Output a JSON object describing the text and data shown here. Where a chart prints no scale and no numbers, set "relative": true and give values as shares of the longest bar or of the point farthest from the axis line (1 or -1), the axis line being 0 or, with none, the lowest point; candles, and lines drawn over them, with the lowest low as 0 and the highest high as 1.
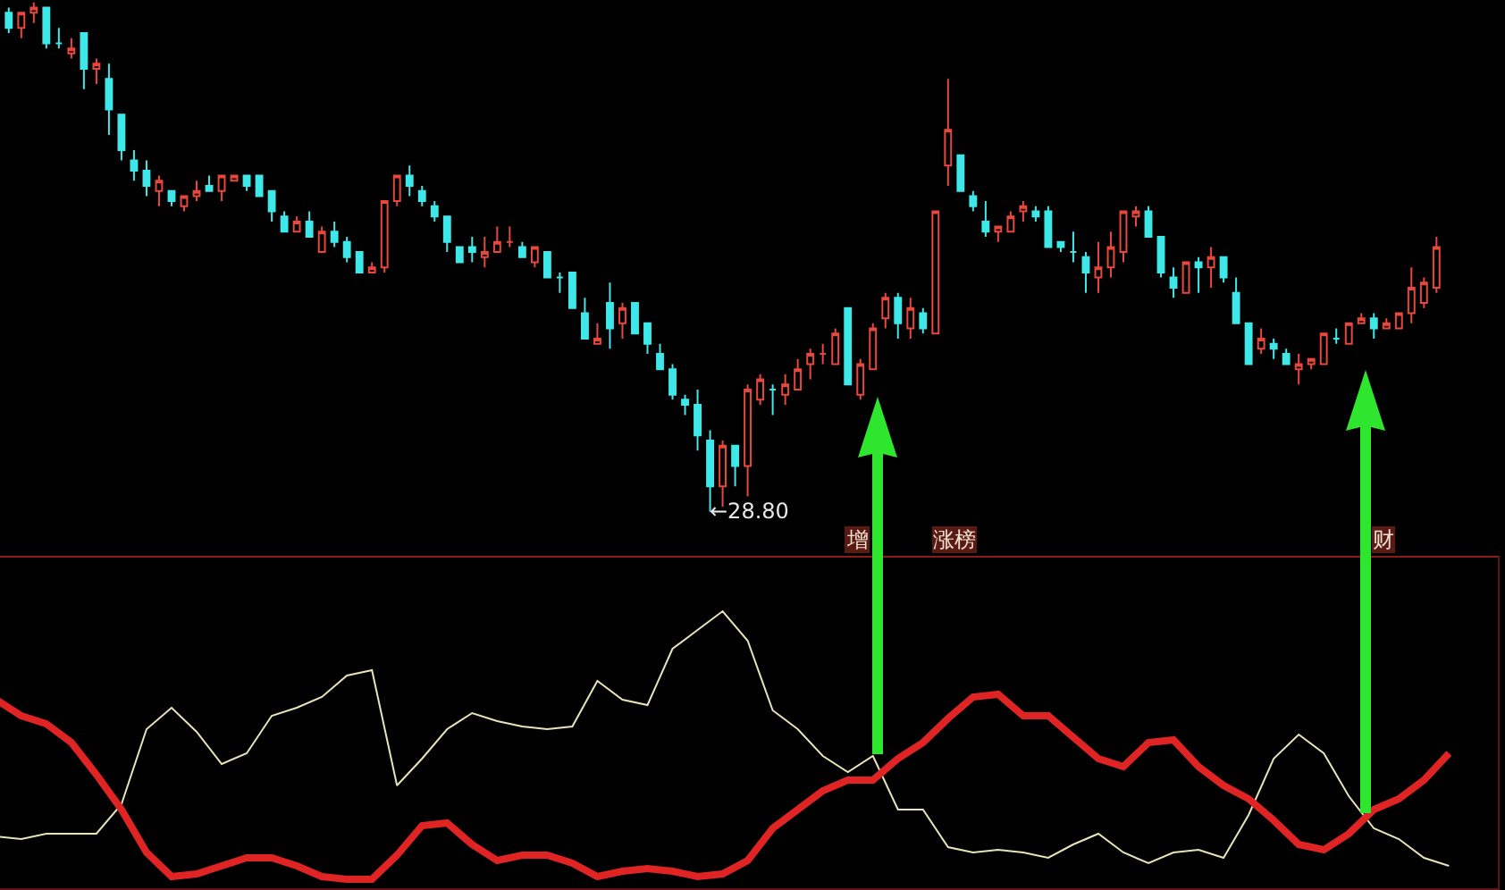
{
  "chart_data": [
    {
      "type": "candlestick",
      "relative": true,
      "categories": [
        null,
        null,
        null,
        null,
        null,
        null,
        null,
        null,
        null,
        null,
        null,
        null,
        null,
        null,
        null,
        null,
        null,
        null,
        null,
        null,
        null,
        null,
        null,
        null,
        null,
        null,
        null,
        null,
        null,
        null,
        null,
        null,
        null,
        null,
        null,
        null,
        null,
        null,
        null,
        null,
        null,
        null,
        null,
        null,
        null,
        null,
        null,
        null,
        null,
        null,
        null,
        null,
        null,
        null,
        null,
        null,
        null,
        null,
        null,
        null,
        null,
        null,
        null,
        null,
        null,
        null,
        null,
        null,
        null,
        null,
        null,
        null,
        null,
        null,
        null,
        null,
        null,
        null,
        null,
        null,
        null,
        null,
        null,
        null,
        null,
        null,
        null,
        null,
        null,
        null,
        null,
        null,
        null,
        null,
        null,
        null,
        null,
        null,
        null,
        null,
        null,
        null,
        null,
        null,
        null,
        null,
        null,
        null,
        null,
        null,
        null,
        null,
        null,
        null,
        null
      ],
      "ohlc": [
        [
          0.98,
          0.99,
          0.94,
          0.95
        ],
        [
          0.95,
          0.98,
          0.93,
          0.98
        ],
        [
          0.98,
          1.0,
          0.96,
          0.99
        ],
        [
          0.99,
          0.99,
          0.91,
          0.92
        ],
        [
          0.92,
          0.95,
          0.91,
          0.92
        ],
        [
          0.9,
          0.93,
          0.89,
          0.91
        ],
        [
          0.94,
          0.94,
          0.83,
          0.87
        ],
        [
          0.87,
          0.89,
          0.84,
          0.88
        ],
        [
          0.85,
          0.88,
          0.74,
          0.79
        ],
        [
          0.78,
          0.78,
          0.69,
          0.71
        ],
        [
          0.69,
          0.71,
          0.65,
          0.67
        ],
        [
          0.67,
          0.69,
          0.62,
          0.64
        ],
        [
          0.63,
          0.66,
          0.6,
          0.65
        ],
        [
          0.63,
          0.63,
          0.6,
          0.61
        ],
        [
          0.6,
          0.62,
          0.59,
          0.62
        ],
        [
          0.62,
          0.65,
          0.61,
          0.63
        ],
        [
          0.64,
          0.66,
          0.63,
          0.63
        ],
        [
          0.63,
          0.66,
          0.61,
          0.66
        ],
        [
          0.65,
          0.66,
          0.65,
          0.66
        ],
        [
          0.66,
          0.66,
          0.63,
          0.64
        ],
        [
          0.66,
          0.66,
          0.62,
          0.62
        ],
        [
          0.63,
          0.63,
          0.57,
          0.59
        ],
        [
          0.58,
          0.59,
          0.55,
          0.55
        ],
        [
          0.55,
          0.58,
          0.55,
          0.57
        ],
        [
          0.57,
          0.59,
          0.54,
          0.54
        ],
        [
          0.51,
          0.56,
          0.51,
          0.55
        ],
        [
          0.55,
          0.57,
          0.52,
          0.53
        ],
        [
          0.53,
          0.54,
          0.49,
          0.5
        ],
        [
          0.51,
          0.51,
          0.47,
          0.47
        ],
        [
          0.47,
          0.49,
          0.47,
          0.48
        ],
        [
          0.48,
          0.61,
          0.47,
          0.61
        ],
        [
          0.61,
          0.66,
          0.6,
          0.66
        ],
        [
          0.66,
          0.68,
          0.62,
          0.64
        ],
        [
          0.63,
          0.64,
          0.6,
          0.61
        ],
        [
          0.6,
          0.61,
          0.57,
          0.58
        ],
        [
          0.58,
          0.58,
          0.51,
          0.53
        ],
        [
          0.52,
          0.52,
          0.49,
          0.49
        ],
        [
          0.52,
          0.54,
          0.49,
          0.51
        ],
        [
          0.5,
          0.54,
          0.48,
          0.51
        ],
        [
          0.51,
          0.56,
          0.51,
          0.53
        ],
        [
          0.53,
          0.56,
          0.52,
          0.53
        ],
        [
          0.52,
          0.53,
          0.5,
          0.5
        ],
        [
          0.49,
          0.52,
          0.48,
          0.52
        ],
        [
          0.51,
          0.51,
          0.46,
          0.46
        ],
        [
          0.46,
          0.47,
          0.43,
          0.46
        ],
        [
          0.47,
          0.47,
          0.4,
          0.4
        ],
        [
          0.39,
          0.42,
          0.34,
          0.34
        ],
        [
          0.33,
          0.37,
          0.33,
          0.34
        ],
        [
          0.41,
          0.45,
          0.32,
          0.36
        ],
        [
          0.37,
          0.41,
          0.34,
          0.4
        ],
        [
          0.41,
          0.41,
          0.35,
          0.35
        ],
        [
          0.37,
          0.37,
          0.31,
          0.33
        ],
        [
          0.31,
          0.33,
          0.28,
          0.28
        ],
        [
          0.28,
          0.29,
          0.22,
          0.23
        ],
        [
          0.22,
          0.23,
          0.19,
          0.21
        ],
        [
          0.21,
          0.24,
          0.12,
          0.15
        ],
        [
          0.14,
          0.16,
          0.0,
          0.05
        ],
        [
          0.05,
          0.14,
          0.01,
          0.13
        ],
        [
          0.13,
          0.13,
          0.05,
          0.09
        ],
        [
          0.09,
          0.25,
          0.03,
          0.24
        ],
        [
          0.22,
          0.27,
          0.21,
          0.26
        ],
        [
          0.24,
          0.25,
          0.19,
          0.24
        ],
        [
          0.23,
          0.27,
          0.21,
          0.25
        ],
        [
          0.24,
          0.3,
          0.24,
          0.28
        ],
        [
          0.29,
          0.32,
          0.26,
          0.31
        ],
        [
          0.31,
          0.33,
          0.29,
          0.31
        ],
        [
          0.29,
          0.36,
          0.29,
          0.35
        ],
        [
          0.4,
          0.4,
          0.25,
          0.25
        ],
        [
          0.23,
          0.3,
          0.22,
          0.29
        ],
        [
          0.28,
          0.37,
          0.28,
          0.36
        ],
        [
          0.38,
          0.43,
          0.36,
          0.42
        ],
        [
          0.42,
          0.43,
          0.34,
          0.37
        ],
        [
          0.36,
          0.42,
          0.34,
          0.4
        ],
        [
          0.39,
          0.4,
          0.35,
          0.36
        ],
        [
          0.35,
          0.59,
          0.35,
          0.59
        ],
        [
          0.68,
          0.85,
          0.64,
          0.75
        ],
        [
          0.7,
          0.7,
          0.63,
          0.63
        ],
        [
          0.62,
          0.63,
          0.59,
          0.6
        ],
        [
          0.57,
          0.61,
          0.54,
          0.55
        ],
        [
          0.55,
          0.56,
          0.53,
          0.56
        ],
        [
          0.55,
          0.59,
          0.55,
          0.58
        ],
        [
          0.59,
          0.61,
          0.57,
          0.6
        ],
        [
          0.59,
          0.6,
          0.57,
          0.58
        ],
        [
          0.59,
          0.6,
          0.52,
          0.52
        ],
        [
          0.53,
          0.53,
          0.51,
          0.52
        ],
        [
          0.51,
          0.55,
          0.49,
          0.51
        ],
        [
          0.5,
          0.51,
          0.43,
          0.47
        ],
        [
          0.46,
          0.53,
          0.43,
          0.48
        ],
        [
          0.48,
          0.55,
          0.46,
          0.52
        ],
        [
          0.51,
          0.59,
          0.49,
          0.59
        ],
        [
          0.58,
          0.6,
          0.56,
          0.59
        ],
        [
          0.59,
          0.6,
          0.54,
          0.54
        ],
        [
          0.54,
          0.54,
          0.46,
          0.47
        ],
        [
          0.46,
          0.48,
          0.42,
          0.44
        ],
        [
          0.43,
          0.49,
          0.43,
          0.49
        ],
        [
          0.49,
          0.5,
          0.43,
          0.48
        ],
        [
          0.48,
          0.52,
          0.44,
          0.5
        ],
        [
          0.5,
          0.5,
          0.45,
          0.46
        ],
        [
          0.43,
          0.46,
          0.37,
          0.37
        ],
        [
          0.37,
          0.37,
          0.29,
          0.29
        ],
        [
          0.32,
          0.36,
          0.31,
          0.34
        ],
        [
          0.33,
          0.34,
          0.3,
          0.32
        ],
        [
          0.31,
          0.32,
          0.29,
          0.29
        ],
        [
          0.28,
          0.31,
          0.25,
          0.29
        ],
        [
          0.29,
          0.3,
          0.28,
          0.3
        ],
        [
          0.29,
          0.35,
          0.29,
          0.35
        ],
        [
          0.34,
          0.36,
          0.33,
          0.34
        ],
        [
          0.33,
          0.37,
          0.33,
          0.37
        ],
        [
          0.37,
          0.39,
          0.37,
          0.38
        ],
        [
          0.38,
          0.39,
          0.34,
          0.36
        ],
        [
          0.36,
          0.38,
          0.36,
          0.37
        ],
        [
          0.36,
          0.39,
          0.36,
          0.39
        ],
        [
          0.39,
          0.48,
          0.37,
          0.44
        ],
        [
          0.41,
          0.46,
          0.4,
          0.45
        ],
        [
          0.44,
          0.54,
          0.43,
          0.52
        ]
      ],
      "annotations": [
        "←28.80",
        "增",
        "涨榜",
        "财"
      ]
    },
    {
      "type": "line",
      "relative": true,
      "categories": [
        null,
        null,
        null,
        null,
        null,
        null,
        null,
        null,
        null,
        null,
        null,
        null,
        null,
        null,
        null,
        null,
        null,
        null,
        null,
        null,
        null,
        null,
        null,
        null,
        null,
        null,
        null,
        null,
        null,
        null,
        null,
        null,
        null,
        null,
        null,
        null,
        null,
        null,
        null,
        null,
        null,
        null,
        null,
        null,
        null,
        null,
        null,
        null,
        null,
        null,
        null,
        null,
        null,
        null,
        null,
        null,
        null,
        null,
        null
      ],
      "series": [
        {
          "color": "#e8e4b8",
          "values": [
            0.16,
            0.15,
            0.17,
            0.17,
            0.17,
            0.28,
            0.56,
            0.64,
            0.55,
            0.43,
            0.47,
            0.61,
            0.64,
            0.68,
            0.76,
            0.78,
            0.35,
            0.45,
            0.56,
            0.62,
            0.59,
            0.57,
            0.56,
            0.57,
            0.74,
            0.67,
            0.65,
            0.86,
            0.93,
            1.0,
            0.89,
            0.63,
            0.56,
            0.46,
            0.4,
            0.46,
            0.26,
            0.26,
            0.12,
            0.1,
            0.11,
            0.1,
            0.08,
            0.13,
            0.17,
            0.1,
            0.06,
            0.1,
            0.11,
            0.08,
            0.24,
            0.45,
            0.54,
            0.47,
            0.31,
            0.19,
            0.15,
            0.08,
            0.05
          ]
        },
        {
          "color": "#e02424",
          "values": [
            0.67,
            0.61,
            0.58,
            0.51,
            0.39,
            0.26,
            0.1,
            0.01,
            0.02,
            0.05,
            0.08,
            0.08,
            0.05,
            0.01,
            0.0,
            0.0,
            0.09,
            0.2,
            0.21,
            0.13,
            0.07,
            0.09,
            0.09,
            0.06,
            0.01,
            0.03,
            0.04,
            0.03,
            0.01,
            0.02,
            0.07,
            0.19,
            0.26,
            0.33,
            0.37,
            0.37,
            0.45,
            0.51,
            0.6,
            0.68,
            0.69,
            0.61,
            0.61,
            0.53,
            0.45,
            0.42,
            0.51,
            0.52,
            0.42,
            0.35,
            0.3,
            0.22,
            0.13,
            0.11,
            0.17,
            0.26,
            0.3,
            0.37,
            0.47
          ]
        }
      ]
    }
  ]
}
